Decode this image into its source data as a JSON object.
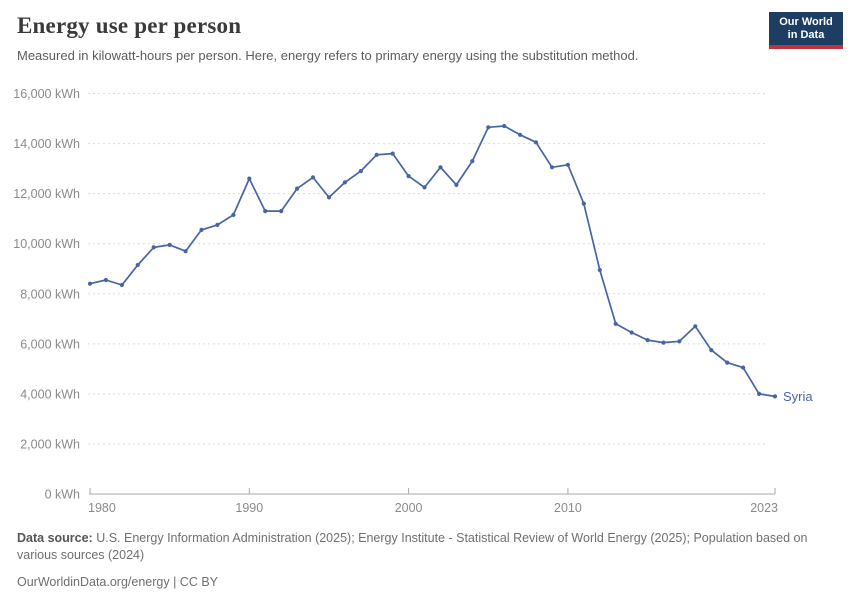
{
  "header": {
    "title": "Energy use per person",
    "subtitle": "Measured in kilowatt-hours per person. Here, energy refers to primary energy using the substitution method."
  },
  "logo": {
    "line1": "Our World",
    "line2": "in Data",
    "bg_color": "#1d3d63",
    "stripe_color": "#c0333e"
  },
  "chart_data": {
    "type": "line",
    "title": "Energy use per person",
    "ylabel": "",
    "xlabel": "",
    "unit": "kWh",
    "ylim": [
      0,
      16000
    ],
    "yticks": [
      0,
      2000,
      4000,
      6000,
      8000,
      10000,
      12000,
      14000,
      16000
    ],
    "ytick_suffix": " kWh",
    "xticks": [
      1980,
      1990,
      2000,
      2010,
      2023
    ],
    "grid": "dashed horizontal",
    "legend_position": "end-of-line label",
    "x": [
      1980,
      1981,
      1982,
      1983,
      1984,
      1985,
      1986,
      1987,
      1988,
      1989,
      1990,
      1991,
      1992,
      1993,
      1994,
      1995,
      1996,
      1997,
      1998,
      1999,
      2000,
      2001,
      2002,
      2003,
      2004,
      2005,
      2006,
      2007,
      2008,
      2009,
      2010,
      2011,
      2012,
      2013,
      2014,
      2015,
      2016,
      2017,
      2018,
      2019,
      2020,
      2021,
      2022,
      2023
    ],
    "series": [
      {
        "name": "Syria",
        "color": "#4665a3",
        "values": [
          8400,
          8550,
          8350,
          9150,
          9850,
          9950,
          9700,
          10550,
          10750,
          11150,
          12600,
          11300,
          11300,
          12200,
          12650,
          11850,
          12450,
          12900,
          13550,
          13600,
          12700,
          12250,
          13050,
          12350,
          13300,
          14650,
          14700,
          14350,
          14050,
          13050,
          13150,
          11600,
          8950,
          6800,
          6450,
          6150,
          6050,
          6100,
          6700,
          5750,
          5250,
          5050,
          4000,
          3900
        ]
      }
    ]
  },
  "footer": {
    "source_label": "Data source:",
    "source_text": "U.S. Energy Information Administration (2025); Energy Institute - Statistical Review of World Energy (2025); Population based on various sources (2024)",
    "link_text": "OurWorldinData.org/energy | CC BY"
  },
  "colors": {
    "grid": "#dcdcdc",
    "axis": "#a9a9a9",
    "tick_label": "#8a8a8a"
  }
}
